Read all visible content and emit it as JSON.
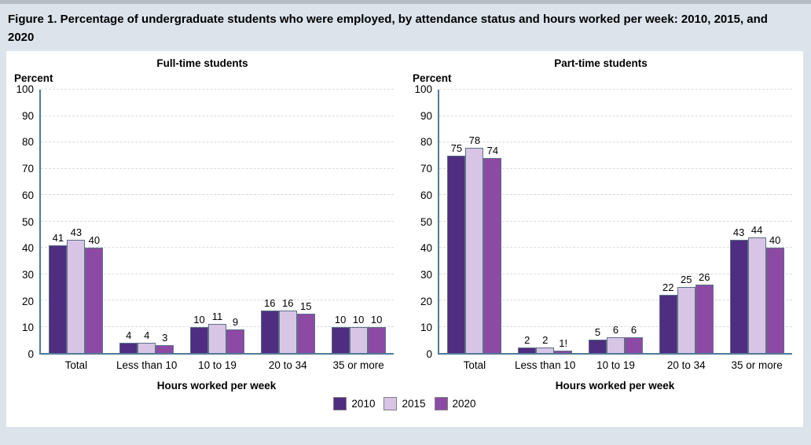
{
  "page": {
    "title": "Figure 1. Percentage of undergraduate students who were employed, by attendance status and hours worked per week: 2010, 2015, and 2020"
  },
  "colors": {
    "series": [
      "#4f2d80",
      "#d8c5e6",
      "#8d4aa5"
    ],
    "page_bg": "#dce3ea",
    "panel_bg": "#ffffff",
    "top_bar": "#b6bcc2",
    "axis": "#527a96",
    "gridline": "#d7dbde",
    "bar_border": "#5c7184",
    "legend_border": "#808080"
  },
  "legend": {
    "items": [
      {
        "label": "2010",
        "color": "#4f2d80"
      },
      {
        "label": "2015",
        "color": "#d8c5e6"
      },
      {
        "label": "2020",
        "color": "#8d4aa5"
      }
    ]
  },
  "chart_data": [
    {
      "type": "bar",
      "title": "Full-time students",
      "ylabel": "Percent",
      "xlabel": "Hours worked per week",
      "ylim": [
        0,
        100
      ],
      "yticks": [
        0,
        10,
        20,
        30,
        40,
        50,
        60,
        70,
        80,
        90,
        100
      ],
      "grid": "dashed-horizontal",
      "legend_position": "bottom-shared",
      "categories": [
        "Total",
        "Less than 10",
        "10 to 19",
        "20 to 34",
        "35 or more"
      ],
      "series": [
        {
          "name": "2010",
          "values": [
            41,
            4,
            10,
            16,
            10
          ],
          "labels": [
            "41",
            "4",
            "10",
            "16",
            "10"
          ]
        },
        {
          "name": "2015",
          "values": [
            43,
            4,
            11,
            16,
            10
          ],
          "labels": [
            "43",
            "4",
            "11",
            "16",
            "10"
          ]
        },
        {
          "name": "2020",
          "values": [
            40,
            3,
            9,
            15,
            10
          ],
          "labels": [
            "40",
            "3",
            "9",
            "15",
            "10"
          ]
        }
      ]
    },
    {
      "type": "bar",
      "title": "Part-time students",
      "ylabel": "Percent",
      "xlabel": "Hours worked per week",
      "ylim": [
        0,
        100
      ],
      "yticks": [
        0,
        10,
        20,
        30,
        40,
        50,
        60,
        70,
        80,
        90,
        100
      ],
      "grid": "dashed-horizontal",
      "legend_position": "bottom-shared",
      "categories": [
        "Total",
        "Less than 10",
        "10 to 19",
        "20 to 34",
        "35 or more"
      ],
      "series": [
        {
          "name": "2010",
          "values": [
            75,
            2,
            5,
            22,
            43
          ],
          "labels": [
            "75",
            "2",
            "5",
            "22",
            "43"
          ]
        },
        {
          "name": "2015",
          "values": [
            78,
            2,
            6,
            25,
            44
          ],
          "labels": [
            "78",
            "2",
            "6",
            "25",
            "44"
          ]
        },
        {
          "name": "2020",
          "values": [
            74,
            1,
            6,
            26,
            40
          ],
          "labels": [
            "74",
            "1!",
            "6",
            "26",
            "40"
          ]
        }
      ]
    }
  ]
}
